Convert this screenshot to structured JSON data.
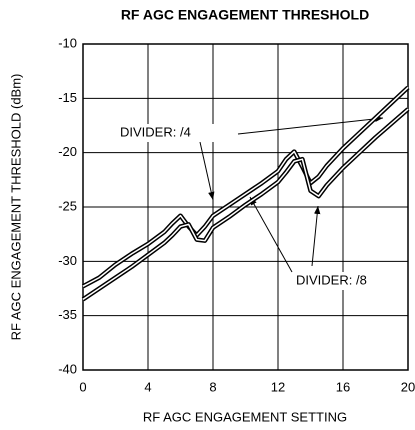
{
  "chart_data": {
    "type": "line",
    "title": "RF AGC ENGAGEMENT THRESHOLD",
    "xlabel": "RF AGC ENGAGEMENT SETTING",
    "ylabel": "RF AGC ENGAGEMENT THRESHOLD (dBm)",
    "x": [
      0,
      1,
      2,
      3,
      4,
      5,
      5.5,
      6,
      6.5,
      7,
      7.5,
      8,
      9,
      10,
      11,
      12,
      12.5,
      13,
      13.5,
      14,
      14.5,
      15,
      16,
      17,
      18,
      19,
      20
    ],
    "series": [
      {
        "name": "DIVIDER: /4",
        "color": "#000000",
        "values": [
          -32.3,
          -31.5,
          -30.3,
          -29.3,
          -28.4,
          -27.3,
          -26.5,
          -25.8,
          -26.8,
          -27.6,
          -26.8,
          -25.8,
          -24.8,
          -23.8,
          -22.8,
          -21.7,
          -20.6,
          -19.9,
          -21.3,
          -22.8,
          -22.2,
          -21.2,
          -19.6,
          -18.2,
          -16.8,
          -15.4,
          -14.0
        ]
      },
      {
        "name": "DIVIDER: /8",
        "color": "#000000",
        "values": [
          -33.5,
          -32.5,
          -31.5,
          -30.5,
          -29.4,
          -28.3,
          -27.6,
          -26.8,
          -26.6,
          -28.0,
          -28.1,
          -26.9,
          -25.9,
          -24.8,
          -23.8,
          -22.7,
          -21.8,
          -20.8,
          -20.6,
          -23.5,
          -24.0,
          -23.0,
          -21.4,
          -20.0,
          -18.6,
          -17.3,
          -16.0
        ]
      }
    ],
    "xlim": [
      0,
      20
    ],
    "xticks": [
      0,
      4,
      8,
      12,
      16,
      20
    ],
    "ylim": [
      -40,
      -10
    ],
    "yticks": [
      -40,
      -35,
      -30,
      -25,
      -20,
      -15,
      -10
    ],
    "grid": true
  }
}
